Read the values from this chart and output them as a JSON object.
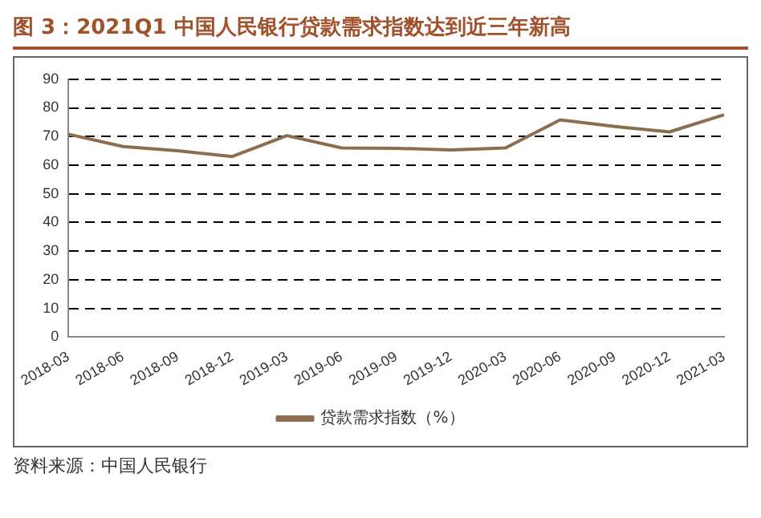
{
  "chart_data": {
    "type": "line",
    "title": "图 3：2021Q1 中国人民银行贷款需求指数达到近三年新高",
    "categories": [
      "2018-03",
      "2018-06",
      "2018-09",
      "2018-12",
      "2019-03",
      "2019-06",
      "2019-09",
      "2019-12",
      "2020-03",
      "2020-06",
      "2020-09",
      "2020-12",
      "2021-03"
    ],
    "series": [
      {
        "name": "贷款需求指数（%）",
        "color": "#8c6d4f",
        "values": [
          70.8,
          66.5,
          65,
          63,
          70.3,
          66,
          65.9,
          65.3,
          66,
          75.8,
          73.5,
          71.6,
          77.6
        ]
      }
    ],
    "ylim": [
      0,
      90
    ],
    "yticks": [
      0,
      10,
      20,
      30,
      40,
      50,
      60,
      70,
      80,
      90
    ],
    "grid": "y",
    "legend": "bottom",
    "marker": "none",
    "line_style": "solid",
    "annotations": [
      "资料来源：中国人民银行"
    ]
  }
}
